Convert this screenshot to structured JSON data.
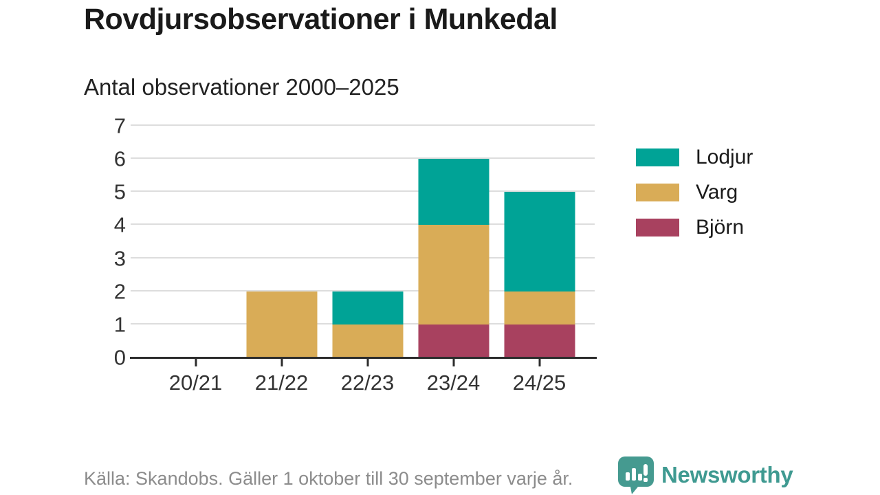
{
  "header": {
    "title": "Rovdjursobservationer i Munkedal",
    "subtitle": "Antal observationer 2000–2025"
  },
  "chart_data": {
    "type": "bar",
    "stacked": true,
    "title": "Rovdjursobservationer i Munkedal",
    "subtitle": "Antal observationer 2000–2025",
    "categories": [
      "20/21",
      "21/22",
      "22/23",
      "23/24",
      "24/25"
    ],
    "series": [
      {
        "name": "Björn",
        "color": "#a8415f",
        "values": [
          0,
          0,
          0,
          1,
          1
        ]
      },
      {
        "name": "Varg",
        "color": "#d9ac57",
        "values": [
          0,
          2,
          1,
          3,
          1
        ]
      },
      {
        "name": "Lodjur",
        "color": "#00a396",
        "values": [
          0,
          0,
          1,
          2,
          3
        ]
      }
    ],
    "totals": [
      0,
      2,
      2,
      6,
      5
    ],
    "ylim": [
      0,
      7
    ],
    "yticks": [
      0,
      1,
      2,
      3,
      4,
      5,
      6,
      7
    ],
    "grid": true,
    "legend_position": "right",
    "legend_order_top_to_bottom": [
      "Lodjur",
      "Varg",
      "Björn"
    ]
  },
  "footer": {
    "source": "Källa: Skandobs. Gäller 1 oktober till 30 september varje år.",
    "brand_name": "Newsworthy"
  },
  "colors": {
    "lodjur": "#00a396",
    "varg": "#d9ac57",
    "bjorn": "#a8415f",
    "gridline": "#dddddd",
    "axis": "#2d2d2d",
    "title_text": "#1a1a1a",
    "footer_text": "#8c8c8c",
    "brand_teal": "#3f9a91"
  }
}
